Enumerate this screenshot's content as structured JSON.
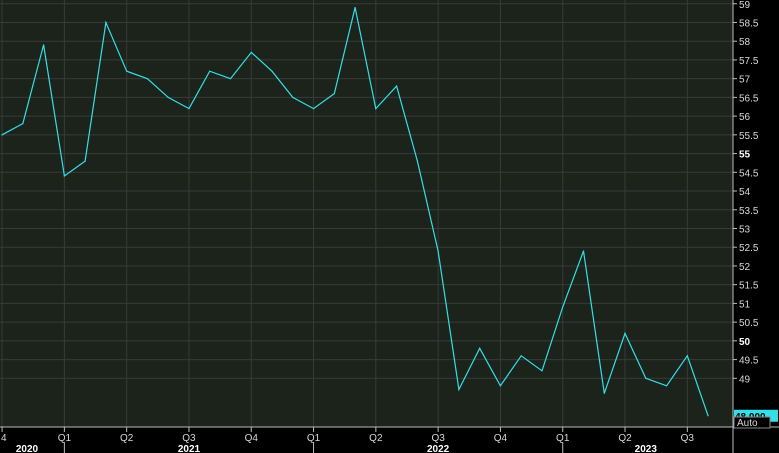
{
  "chart_data": {
    "type": "line",
    "title": "",
    "xlabel": "",
    "ylabel": "",
    "ylim": [
      47.7,
      59.1
    ],
    "grid": true,
    "line_color": "#33e0e8",
    "background_color": "#000000",
    "plot_bg_color": "#1b231b",
    "gridline_color": "#3a3a3a",
    "last_value_label": "48.000",
    "last_label_bg": "#33e0e8",
    "auto_label": "Auto",
    "y_ticks": [
      {
        "value": 49,
        "label": "49",
        "major": false
      },
      {
        "value": 49.5,
        "label": "49.5",
        "major": false
      },
      {
        "value": 50,
        "label": "50",
        "major": true
      },
      {
        "value": 50.5,
        "label": "50.5",
        "major": false
      },
      {
        "value": 51,
        "label": "51",
        "major": false
      },
      {
        "value": 51.5,
        "label": "51.5",
        "major": false
      },
      {
        "value": 52,
        "label": "52",
        "major": false
      },
      {
        "value": 52.5,
        "label": "52.5",
        "major": false
      },
      {
        "value": 53,
        "label": "53",
        "major": false
      },
      {
        "value": 53.5,
        "label": "53.5",
        "major": false
      },
      {
        "value": 54,
        "label": "54",
        "major": false
      },
      {
        "value": 54.5,
        "label": "54.5",
        "major": false
      },
      {
        "value": 55,
        "label": "55",
        "major": true
      },
      {
        "value": 55.5,
        "label": "55.5",
        "major": false
      },
      {
        "value": 56,
        "label": "56",
        "major": false
      },
      {
        "value": 56.5,
        "label": "56.5",
        "major": false
      },
      {
        "value": 57,
        "label": "57",
        "major": false
      },
      {
        "value": 57.5,
        "label": "57.5",
        "major": false
      },
      {
        "value": 58,
        "label": "58",
        "major": false
      },
      {
        "value": 58.5,
        "label": "58.5",
        "major": false
      },
      {
        "value": 59,
        "label": "59",
        "major": false
      }
    ],
    "x_ticks": [
      {
        "x": 0,
        "label": "4"
      },
      {
        "x": 3,
        "label": "Q1"
      },
      {
        "x": 6,
        "label": "Q2"
      },
      {
        "x": 9,
        "label": "Q3"
      },
      {
        "x": 12,
        "label": "Q4"
      },
      {
        "x": 15,
        "label": "Q1"
      },
      {
        "x": 18,
        "label": "Q2"
      },
      {
        "x": 21,
        "label": "Q3"
      },
      {
        "x": 24,
        "label": "Q4"
      },
      {
        "x": 27,
        "label": "Q1"
      },
      {
        "x": 30,
        "label": "Q2"
      },
      {
        "x": 33,
        "label": "Q3"
      }
    ],
    "year_labels": [
      {
        "x": 1.2,
        "label": "2020"
      },
      {
        "x": 9,
        "label": "2021"
      },
      {
        "x": 21,
        "label": "2022"
      },
      {
        "x": 31,
        "label": "2023"
      }
    ],
    "series": [
      {
        "x": [
          0,
          1,
          2,
          3,
          4,
          5,
          6,
          7,
          8,
          9,
          10,
          11,
          12,
          13,
          14,
          15,
          16,
          17,
          18,
          19,
          20,
          21,
          22,
          23,
          24,
          25,
          26,
          27,
          28,
          29,
          30,
          31,
          32,
          33,
          34
        ],
        "values": [
          55.5,
          55.8,
          57.9,
          54.4,
          54.8,
          58.5,
          57.2,
          57.0,
          56.5,
          56.2,
          57.2,
          57.0,
          57.7,
          57.2,
          56.5,
          56.2,
          56.6,
          58.9,
          56.2,
          56.8,
          54.8,
          52.4,
          48.7,
          49.8,
          48.8,
          49.6,
          49.2,
          50.9,
          52.4,
          48.6,
          50.2,
          49.0,
          48.8,
          49.6,
          48.0
        ]
      }
    ]
  }
}
